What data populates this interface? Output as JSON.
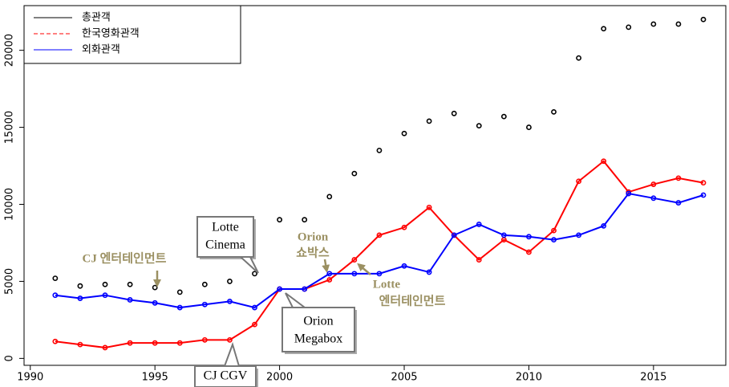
{
  "chart_data": {
    "type": "line",
    "x": [
      1991,
      1992,
      1993,
      1994,
      1995,
      1996,
      1997,
      1998,
      1999,
      2000,
      2001,
      2002,
      2003,
      2004,
      2005,
      2006,
      2007,
      2008,
      2009,
      2010,
      2011,
      2012,
      2013,
      2014,
      2015,
      2016,
      2017
    ],
    "series": [
      {
        "name": "총관객",
        "color": "#000000",
        "values": [
          5200,
          4700,
          4800,
          4800,
          4600,
          4300,
          4800,
          5000,
          5500,
          9000,
          9000,
          10500,
          12000,
          13500,
          14600,
          15400,
          15900,
          15100,
          15700,
          15000,
          16000,
          19500,
          21400,
          21500,
          21700,
          21700,
          22000
        ]
      },
      {
        "name": "한국영화관객",
        "color": "#ff0000",
        "values": [
          1100,
          900,
          700,
          1000,
          1000,
          1000,
          1200,
          1200,
          2200,
          4500,
          4500,
          5100,
          6400,
          8000,
          8500,
          9800,
          8000,
          6400,
          7700,
          6900,
          8300,
          11500,
          12800,
          10800,
          11300,
          11700,
          11400
        ]
      },
      {
        "name": "외화관객",
        "color": "#0000ff",
        "values": [
          4100,
          3900,
          4100,
          3800,
          3600,
          3300,
          3500,
          3700,
          3300,
          4500,
          4500,
          5500,
          5500,
          5500,
          6000,
          5600,
          8000,
          8700,
          8000,
          7900,
          7700,
          8000,
          8600,
          10700,
          10400,
          10100,
          10600
        ]
      }
    ],
    "xlim": [
      1989.75,
      2017.9
    ],
    "xticks": [
      1990,
      1995,
      2000,
      2005,
      2010,
      2015
    ],
    "ylim": [
      -450,
      22900
    ],
    "yticks": [
      0,
      5000,
      10000,
      15000,
      20000
    ],
    "legend": "top-left",
    "annotations": [
      {
        "lines": [
          "CJ 엔터테인먼트"
        ]
      },
      {
        "lines": [
          "Lotte",
          "Cinema"
        ]
      },
      {
        "lines": [
          "Orion",
          "쇼박스"
        ]
      },
      {
        "lines": [
          "Lotte",
          "엔터테인먼트"
        ]
      },
      {
        "lines": [
          "Orion",
          "Megabox"
        ]
      },
      {
        "lines": [
          "CJ CGV"
        ]
      }
    ]
  }
}
